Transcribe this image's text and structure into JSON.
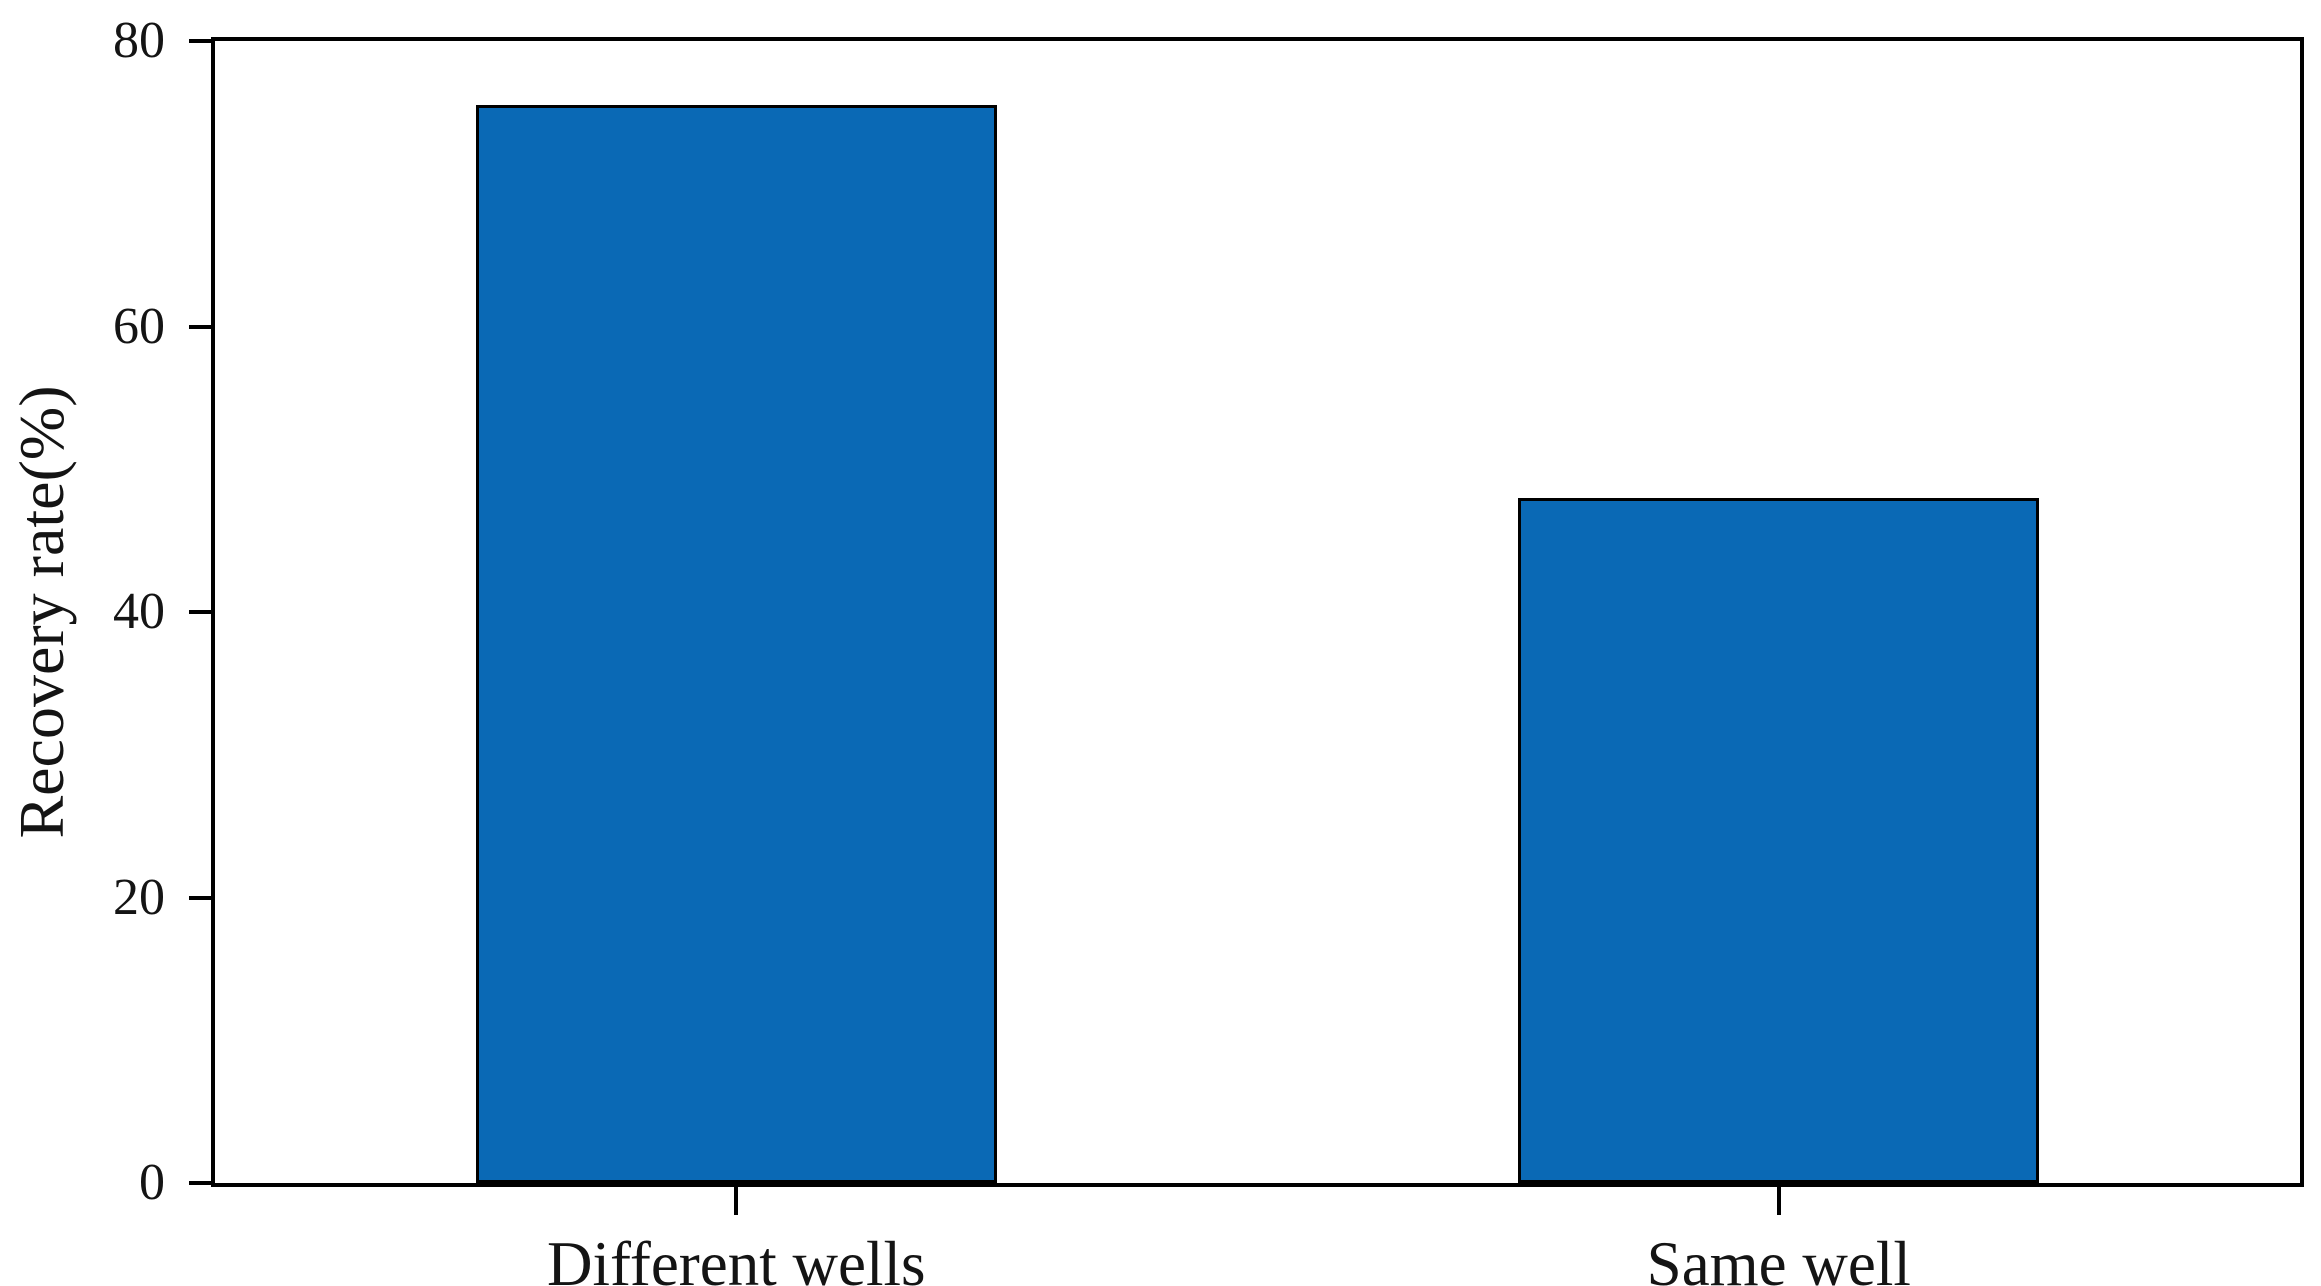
{
  "figure": {
    "background_color": "#ffffff",
    "axis_color": "#000000",
    "text_color": "#141414"
  },
  "chart_data": {
    "type": "bar",
    "categories": [
      "Different wells",
      "Same well"
    ],
    "values": [
      75.5,
      48
    ],
    "title": "",
    "xlabel": "",
    "ylabel": "Recovery rate(%)",
    "ylim": [
      0,
      80
    ],
    "yticks": [
      "0",
      "20",
      "40",
      "60",
      "80"
    ],
    "grid": false,
    "legend": "none",
    "frame": "full-box",
    "tick_direction": "out",
    "bar_color": "#0a69b5",
    "bar_edge_color": "#000000",
    "bar_width_fraction": 0.5
  }
}
